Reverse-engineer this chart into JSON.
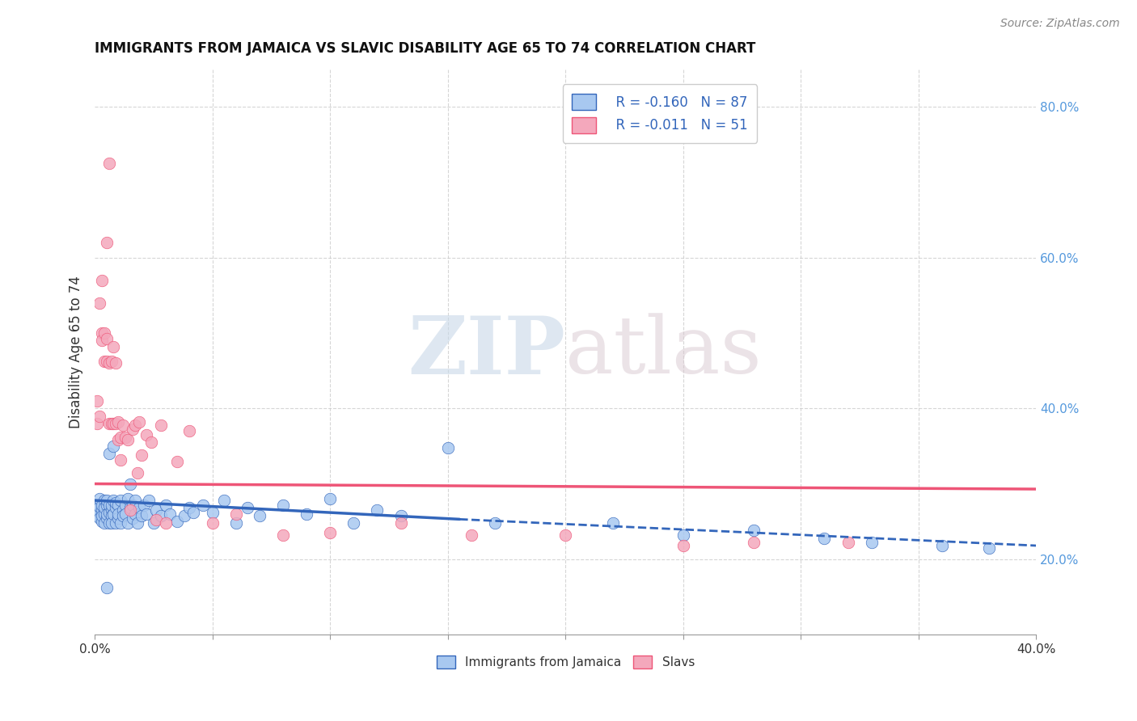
{
  "title": "IMMIGRANTS FROM JAMAICA VS SLAVIC DISABILITY AGE 65 TO 74 CORRELATION CHART",
  "source": "Source: ZipAtlas.com",
  "ylabel": "Disability Age 65 to 74",
  "legend_label_1": "Immigrants from Jamaica",
  "legend_label_2": "Slavs",
  "R1": -0.16,
  "N1": 87,
  "R2": -0.011,
  "N2": 51,
  "color1": "#A8C8F0",
  "color2": "#F4A8BC",
  "line_color1": "#3366BB",
  "line_color2": "#EE5577",
  "xlim": [
    0.0,
    0.4
  ],
  "ylim": [
    0.1,
    0.85
  ],
  "yticks_right": [
    0.2,
    0.4,
    0.6,
    0.8
  ],
  "ytick_labels_right": [
    "20.0%",
    "40.0%",
    "60.0%",
    "80.0%"
  ],
  "background_color": "#FFFFFF",
  "grid_color": "#CCCCCC",
  "watermark_zip": "ZIP",
  "watermark_atlas": "atlas",
  "blue_line_x0": 0.0,
  "blue_line_y0": 0.278,
  "blue_line_x1": 0.155,
  "blue_line_y1": 0.253,
  "blue_line_xend": 0.4,
  "blue_line_yend": 0.218,
  "pink_line_x0": 0.0,
  "pink_line_y0": 0.3,
  "pink_line_x1": 0.4,
  "pink_line_y1": 0.293,
  "blue_scatter_x": [
    0.001,
    0.001,
    0.001,
    0.002,
    0.002,
    0.002,
    0.002,
    0.003,
    0.003,
    0.003,
    0.003,
    0.004,
    0.004,
    0.004,
    0.004,
    0.005,
    0.005,
    0.005,
    0.005,
    0.006,
    0.006,
    0.006,
    0.006,
    0.007,
    0.007,
    0.007,
    0.007,
    0.008,
    0.008,
    0.008,
    0.009,
    0.009,
    0.009,
    0.01,
    0.01,
    0.01,
    0.011,
    0.011,
    0.012,
    0.012,
    0.013,
    0.013,
    0.014,
    0.014,
    0.015,
    0.015,
    0.016,
    0.016,
    0.017,
    0.017,
    0.018,
    0.019,
    0.02,
    0.021,
    0.022,
    0.023,
    0.025,
    0.026,
    0.028,
    0.03,
    0.032,
    0.035,
    0.038,
    0.04,
    0.042,
    0.046,
    0.05,
    0.055,
    0.06,
    0.065,
    0.07,
    0.08,
    0.09,
    0.1,
    0.11,
    0.12,
    0.13,
    0.15,
    0.17,
    0.22,
    0.25,
    0.28,
    0.31,
    0.33,
    0.36,
    0.38,
    0.005
  ],
  "blue_scatter_y": [
    0.268,
    0.258,
    0.272,
    0.262,
    0.27,
    0.255,
    0.28,
    0.25,
    0.265,
    0.258,
    0.272,
    0.26,
    0.278,
    0.248,
    0.268,
    0.255,
    0.272,
    0.26,
    0.278,
    0.248,
    0.262,
    0.272,
    0.34,
    0.265,
    0.258,
    0.272,
    0.248,
    0.26,
    0.278,
    0.35,
    0.248,
    0.268,
    0.275,
    0.255,
    0.272,
    0.26,
    0.278,
    0.248,
    0.265,
    0.258,
    0.272,
    0.26,
    0.28,
    0.248,
    0.268,
    0.3,
    0.255,
    0.272,
    0.26,
    0.278,
    0.248,
    0.268,
    0.258,
    0.272,
    0.26,
    0.278,
    0.248,
    0.265,
    0.258,
    0.272,
    0.26,
    0.25,
    0.258,
    0.268,
    0.262,
    0.272,
    0.262,
    0.278,
    0.248,
    0.268,
    0.258,
    0.272,
    0.26,
    0.28,
    0.248,
    0.265,
    0.258,
    0.348,
    0.248,
    0.248,
    0.232,
    0.238,
    0.228,
    0.222,
    0.218,
    0.215,
    0.162
  ],
  "pink_scatter_x": [
    0.001,
    0.001,
    0.002,
    0.002,
    0.003,
    0.003,
    0.003,
    0.004,
    0.004,
    0.005,
    0.005,
    0.005,
    0.006,
    0.006,
    0.007,
    0.007,
    0.008,
    0.008,
    0.009,
    0.009,
    0.01,
    0.01,
    0.011,
    0.011,
    0.012,
    0.013,
    0.014,
    0.015,
    0.016,
    0.017,
    0.018,
    0.019,
    0.02,
    0.022,
    0.024,
    0.026,
    0.028,
    0.03,
    0.035,
    0.04,
    0.05,
    0.06,
    0.08,
    0.1,
    0.13,
    0.16,
    0.2,
    0.25,
    0.28,
    0.32,
    0.006
  ],
  "pink_scatter_y": [
    0.38,
    0.41,
    0.54,
    0.39,
    0.57,
    0.5,
    0.49,
    0.5,
    0.462,
    0.462,
    0.492,
    0.62,
    0.38,
    0.46,
    0.38,
    0.462,
    0.38,
    0.482,
    0.46,
    0.38,
    0.358,
    0.382,
    0.332,
    0.362,
    0.378,
    0.362,
    0.358,
    0.265,
    0.372,
    0.378,
    0.315,
    0.382,
    0.338,
    0.365,
    0.355,
    0.252,
    0.378,
    0.248,
    0.33,
    0.37,
    0.248,
    0.26,
    0.232,
    0.235,
    0.248,
    0.232,
    0.232,
    0.218,
    0.222,
    0.222,
    0.725
  ]
}
